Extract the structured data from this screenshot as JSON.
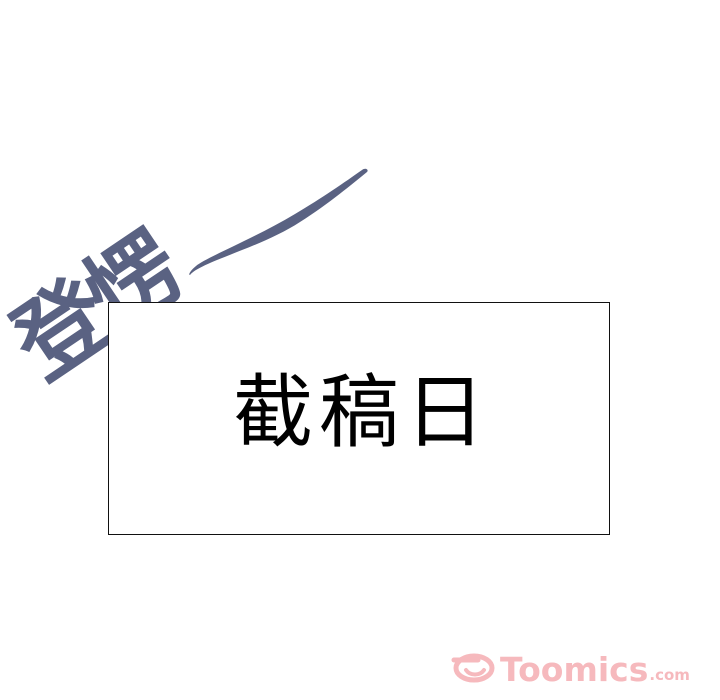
{
  "panel": {
    "sfx_text": "登愣",
    "caption_text": "截稿日"
  },
  "watermark": {
    "name": "Toomics",
    "suffix": ".com",
    "icon": "toomics-logo-icon"
  },
  "colors": {
    "background": "#ffffff",
    "sfx": "#5a6282",
    "caption_border": "#111111",
    "caption_text": "#000000",
    "watermark": "#f6b9bd"
  }
}
